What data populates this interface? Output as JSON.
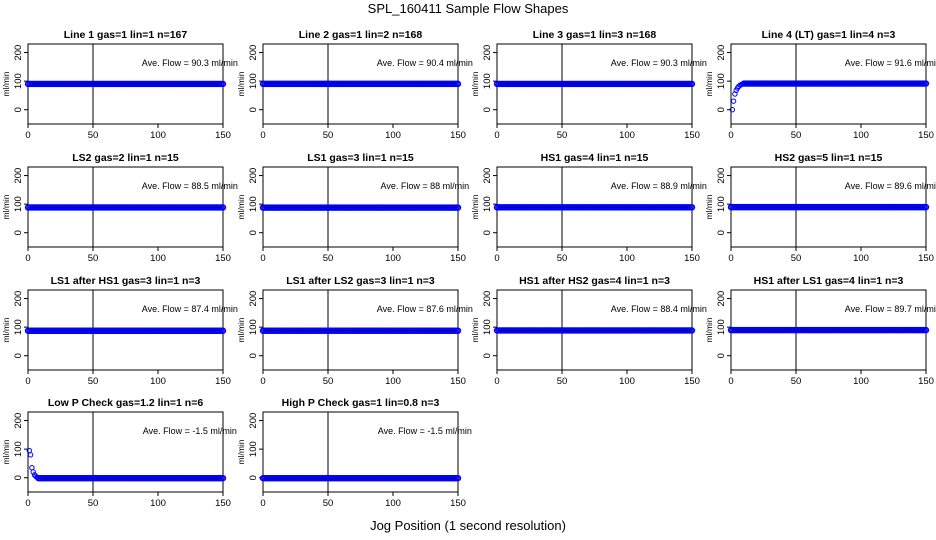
{
  "page": {
    "title": "SPL_160411  Sample Flow Shapes",
    "xlabel": "Jog Position (1 second resolution)"
  },
  "chart_data": [
    {
      "type": "scatter",
      "title": "Line 1 gas=1 lin=1 n=167",
      "ylabel": "ml/min",
      "xlim": [
        0,
        150
      ],
      "ylim": [
        -50,
        230
      ],
      "xticks": [
        0,
        50,
        100,
        150
      ],
      "yticks": [
        0,
        100,
        200
      ],
      "vline": 50,
      "series": [
        {
          "color": "#0000ff",
          "plateau": 90.3,
          "ramp": null
        }
      ],
      "annotation": "Ave. Flow = 90.3  ml/min"
    },
    {
      "type": "scatter",
      "title": "Line 2 gas=1 lin=2 n=168",
      "ylabel": "ml/min",
      "xlim": [
        0,
        150
      ],
      "ylim": [
        -50,
        230
      ],
      "xticks": [
        0,
        50,
        100,
        150
      ],
      "yticks": [
        0,
        100,
        200
      ],
      "vline": 50,
      "series": [
        {
          "color": "#0000ff",
          "plateau": 90.4,
          "ramp": null
        }
      ],
      "annotation": "Ave. Flow = 90.4  ml/min"
    },
    {
      "type": "scatter",
      "title": "Line 3 gas=1 lin=3 n=168",
      "ylabel": "ml/min",
      "xlim": [
        0,
        150
      ],
      "ylim": [
        -50,
        230
      ],
      "xticks": [
        0,
        50,
        100,
        150
      ],
      "yticks": [
        0,
        100,
        200
      ],
      "vline": 50,
      "series": [
        {
          "color": "#0000ff",
          "plateau": 90.3,
          "ramp": null
        }
      ],
      "annotation": "Ave. Flow = 90.3  ml/min"
    },
    {
      "type": "scatter",
      "title": "Line 4 (LT) gas=1 lin=4 n=3",
      "ylabel": "ml/min",
      "xlim": [
        0,
        150
      ],
      "ylim": [
        -50,
        230
      ],
      "xticks": [
        0,
        50,
        100,
        150
      ],
      "yticks": [
        0,
        100,
        200
      ],
      "vline": 50,
      "series": [
        {
          "color": "#0000ff",
          "plateau": 91.6,
          "ramp": [
            [
              1,
              0
            ],
            [
              2,
              30
            ],
            [
              3,
              55
            ],
            [
              4,
              68
            ],
            [
              5,
              76
            ],
            [
              6,
              82
            ],
            [
              7,
              86
            ],
            [
              8,
              88
            ],
            [
              9,
              90
            ]
          ]
        }
      ],
      "annotation": "Ave. Flow = 91.6  ml/min"
    },
    {
      "type": "scatter",
      "title": "LS2 gas=2 lin=1 n=15",
      "ylabel": "ml/min",
      "xlim": [
        0,
        150
      ],
      "ylim": [
        -50,
        230
      ],
      "xticks": [
        0,
        50,
        100,
        150
      ],
      "yticks": [
        0,
        100,
        200
      ],
      "vline": 50,
      "series": [
        {
          "color": "#0000ff",
          "plateau": 88.5,
          "ramp": null
        }
      ],
      "annotation": "Ave. Flow = 88.5  ml/min"
    },
    {
      "type": "scatter",
      "title": "LS1 gas=3 lin=1 n=15",
      "ylabel": "ml/min",
      "xlim": [
        0,
        150
      ],
      "ylim": [
        -50,
        230
      ],
      "xticks": [
        0,
        50,
        100,
        150
      ],
      "yticks": [
        0,
        100,
        200
      ],
      "vline": 50,
      "series": [
        {
          "color": "#0000ff",
          "plateau": 88,
          "ramp": null
        }
      ],
      "annotation": "Ave. Flow = 88  ml/min"
    },
    {
      "type": "scatter",
      "title": "HS1 gas=4 lin=1 n=15",
      "ylabel": "ml/min",
      "xlim": [
        0,
        150
      ],
      "ylim": [
        -50,
        230
      ],
      "xticks": [
        0,
        50,
        100,
        150
      ],
      "yticks": [
        0,
        100,
        200
      ],
      "vline": 50,
      "series": [
        {
          "color": "#0000ff",
          "plateau": 88.9,
          "ramp": null
        }
      ],
      "annotation": "Ave. Flow = 88.9  ml/min"
    },
    {
      "type": "scatter",
      "title": "HS2 gas=5 lin=1 n=15",
      "ylabel": "ml/min",
      "xlim": [
        0,
        150
      ],
      "ylim": [
        -50,
        230
      ],
      "xticks": [
        0,
        50,
        100,
        150
      ],
      "yticks": [
        0,
        100,
        200
      ],
      "vline": 50,
      "series": [
        {
          "color": "#0000ff",
          "plateau": 89.6,
          "ramp": null
        }
      ],
      "annotation": "Ave. Flow = 89.6  ml/min"
    },
    {
      "type": "scatter",
      "title": "LS1 after HS1 gas=3 lin=1 n=3",
      "ylabel": "ml/min",
      "xlim": [
        0,
        150
      ],
      "ylim": [
        -50,
        230
      ],
      "xticks": [
        0,
        50,
        100,
        150
      ],
      "yticks": [
        0,
        100,
        200
      ],
      "vline": 50,
      "series": [
        {
          "color": "#0000ff",
          "plateau": 87.4,
          "ramp": null
        }
      ],
      "annotation": "Ave. Flow = 87.4  ml/min"
    },
    {
      "type": "scatter",
      "title": "LS1 after LS2 gas=3 lin=1 n=3",
      "ylabel": "ml/min",
      "xlim": [
        0,
        150
      ],
      "ylim": [
        -50,
        230
      ],
      "xticks": [
        0,
        50,
        100,
        150
      ],
      "yticks": [
        0,
        100,
        200
      ],
      "vline": 50,
      "series": [
        {
          "color": "#0000ff",
          "plateau": 87.6,
          "ramp": null
        }
      ],
      "annotation": "Ave. Flow = 87.6  ml/min"
    },
    {
      "type": "scatter",
      "title": "HS1 after HS2 gas=4 lin=1 n=3",
      "ylabel": "ml/min",
      "xlim": [
        0,
        150
      ],
      "ylim": [
        -50,
        230
      ],
      "xticks": [
        0,
        50,
        100,
        150
      ],
      "yticks": [
        0,
        100,
        200
      ],
      "vline": 50,
      "series": [
        {
          "color": "#0000ff",
          "plateau": 88.4,
          "ramp": null
        }
      ],
      "annotation": "Ave. Flow = 88.4  ml/min"
    },
    {
      "type": "scatter",
      "title": "HS1 after LS1 gas=4 lin=1 n=3",
      "ylabel": "ml/min",
      "xlim": [
        0,
        150
      ],
      "ylim": [
        -50,
        230
      ],
      "xticks": [
        0,
        50,
        100,
        150
      ],
      "yticks": [
        0,
        100,
        200
      ],
      "vline": 50,
      "series": [
        {
          "color": "#0000ff",
          "plateau": 89.7,
          "ramp": null
        }
      ],
      "annotation": "Ave. Flow = 89.7  ml/min"
    },
    {
      "type": "scatter",
      "title": "Low P Check gas=1.2 lin=1 n=6",
      "ylabel": "ml/min",
      "xlim": [
        0,
        150
      ],
      "ylim": [
        -50,
        230
      ],
      "xticks": [
        0,
        50,
        100,
        150
      ],
      "yticks": [
        0,
        100,
        200
      ],
      "vline": 50,
      "series": [
        {
          "color": "#0000ff",
          "plateau": -1.5,
          "ramp": [
            [
              1,
              95
            ],
            [
              2,
              80
            ],
            [
              3,
              35
            ],
            [
              4,
              20
            ],
            [
              5,
              10
            ],
            [
              6,
              5
            ],
            [
              7,
              2
            ]
          ]
        }
      ],
      "annotation": "Ave. Flow = -1.5  ml/min"
    },
    {
      "type": "scatter",
      "title": "High P Check gas=1 lin=0.8 n=3",
      "ylabel": "ml/min",
      "xlim": [
        0,
        150
      ],
      "ylim": [
        -50,
        230
      ],
      "xticks": [
        0,
        50,
        100,
        150
      ],
      "yticks": [
        0,
        100,
        200
      ],
      "vline": 50,
      "series": [
        {
          "color": "#0000ff",
          "plateau": -1.5,
          "ramp": null
        }
      ],
      "annotation": "Ave. Flow = -1.5  ml/min"
    }
  ]
}
